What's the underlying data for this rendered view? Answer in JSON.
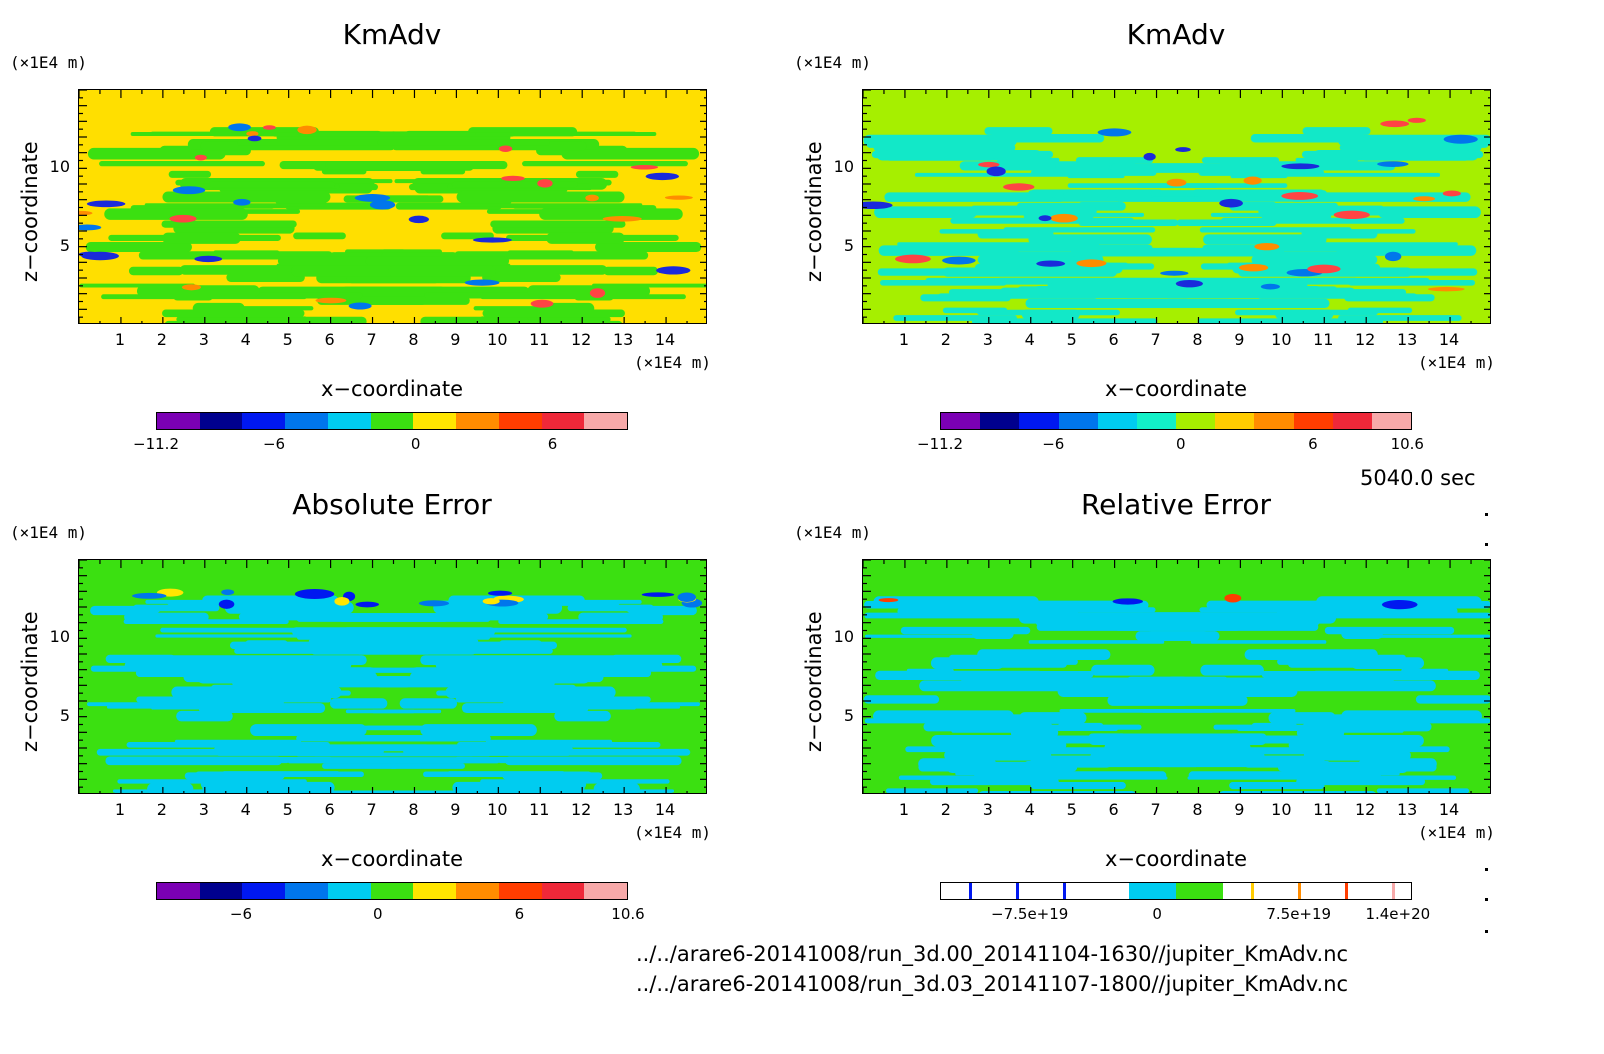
{
  "colors": {
    "main_positive_blobs": "#f44",
    "main_negative_blobs": "#1a2adb"
  },
  "panels": [
    {
      "title": "KmAdv",
      "y_unit": "(×1E4 m)",
      "x_unit": "(×1E4 m)",
      "ylabel": "z−coordinate",
      "xlabel": "x−coordinate",
      "xticks": [
        "1",
        "2",
        "3",
        "4",
        "5",
        "6",
        "7",
        "8",
        "9",
        "10",
        "11",
        "12",
        "13",
        "14"
      ],
      "yticks": [
        "5",
        "10"
      ],
      "background": "#ffdf00",
      "secondary": "#3be011",
      "colorbar": {
        "colors": [
          "#7b00b4",
          "#00008e",
          "#0018f0",
          "#0076ec",
          "#00ccf0",
          "#3be011",
          "#ffe600",
          "#ff8c00",
          "#ff3d00",
          "#ef2839",
          "#f7a9a9"
        ],
        "labels": [
          "−11.2",
          "−6",
          "0",
          "6"
        ]
      }
    },
    {
      "title": "KmAdv",
      "y_unit": "(×1E4 m)",
      "x_unit": "(×1E4 m)",
      "ylabel": "z−coordinate",
      "xlabel": "x−coordinate",
      "xticks": [
        "1",
        "2",
        "3",
        "4",
        "5",
        "6",
        "7",
        "8",
        "9",
        "10",
        "11",
        "12",
        "13",
        "14"
      ],
      "yticks": [
        "5",
        "10"
      ],
      "background": "#a6ef00",
      "secondary": "#12e8c8",
      "colorbar": {
        "colors": [
          "#7b00b4",
          "#00008e",
          "#0018f0",
          "#0076ec",
          "#00ccf0",
          "#12f0c8",
          "#a6ef00",
          "#ffcc00",
          "#ff8c00",
          "#ff3d00",
          "#ef2839",
          "#f7a9a9"
        ],
        "labels": [
          "−11.2",
          "−6",
          "0",
          "6",
          "10.6"
        ]
      }
    },
    {
      "title": "Absolute Error",
      "y_unit": "(×1E4 m)",
      "x_unit": "(×1E4 m)",
      "ylabel": "z−coordinate",
      "xlabel": "x−coordinate",
      "xticks": [
        "1",
        "2",
        "3",
        "4",
        "5",
        "6",
        "7",
        "8",
        "9",
        "10",
        "11",
        "12",
        "13",
        "14"
      ],
      "yticks": [
        "5",
        "10"
      ],
      "background": "#3be011",
      "secondary": "#00ccf0",
      "colorbar": {
        "colors": [
          "#7b00b4",
          "#00008e",
          "#0018f0",
          "#0076ec",
          "#00ccf0",
          "#3be011",
          "#ffe600",
          "#ff8c00",
          "#ff3d00",
          "#ef2839",
          "#f7a9a9"
        ],
        "labels": [
          "−6",
          "0",
          "6",
          "10.6"
        ]
      }
    },
    {
      "title": "Relative Error",
      "y_unit": "(×1E4 m)",
      "x_unit": "(×1E4 m)",
      "ylabel": "z−coordinate",
      "xlabel": "x−coordinate",
      "xticks": [
        "1",
        "2",
        "3",
        "4",
        "5",
        "6",
        "7",
        "8",
        "9",
        "10",
        "11",
        "12",
        "13",
        "14"
      ],
      "yticks": [
        "5",
        "10"
      ],
      "background": "#3be011",
      "secondary": "#00ccf0",
      "colorbar": {
        "colors": [
          "#ffffff",
          "#ffffff",
          "#ffffff",
          "#ffffff",
          "#00ccf0",
          "#3be011",
          "#ffffff",
          "#ffffff",
          "#ffffff",
          "#ffffff"
        ],
        "labels": [
          "−7.5e+19",
          "0",
          "7.5e+19",
          "1.4e+20"
        ]
      }
    }
  ],
  "time_label": "5040.0 sec",
  "file_paths": [
    "../../arare6-20141008/run_3d.00_20141104-1630//jupiter_KmAdv.nc",
    "../../arare6-20141008/run_3d.03_20141107-1800//jupiter_KmAdv.nc"
  ],
  "chart_data": [
    {
      "type": "heatmap",
      "title": "KmAdv",
      "xlabel": "x−coordinate",
      "ylabel": "z−coordinate",
      "xlim": [
        0,
        15
      ],
      "ylim": [
        0,
        15
      ],
      "x_unit": "(×1E4 m)",
      "y_unit": "(×1E4 m)",
      "colorbar_range": [
        -11.2,
        10.6
      ],
      "colorbar_ticks": [
        -11.2,
        -6,
        0,
        6
      ]
    },
    {
      "type": "heatmap",
      "title": "KmAdv",
      "xlabel": "x−coordinate",
      "ylabel": "z−coordinate",
      "xlim": [
        0,
        15
      ],
      "ylim": [
        0,
        15
      ],
      "x_unit": "(×1E4 m)",
      "y_unit": "(×1E4 m)",
      "colorbar_range": [
        -11.2,
        10.6
      ],
      "colorbar_ticks": [
        -11.2,
        -6,
        0,
        6,
        10.6
      ]
    },
    {
      "type": "heatmap",
      "title": "Absolute Error",
      "xlabel": "x−coordinate",
      "ylabel": "z−coordinate",
      "xlim": [
        0,
        15
      ],
      "ylim": [
        0,
        15
      ],
      "x_unit": "(×1E4 m)",
      "y_unit": "(×1E4 m)",
      "colorbar_ticks": [
        -6,
        0,
        6,
        10.6
      ]
    },
    {
      "type": "heatmap",
      "title": "Relative Error",
      "xlabel": "x−coordinate",
      "ylabel": "z−coordinate",
      "xlim": [
        0,
        15
      ],
      "ylim": [
        0,
        15
      ],
      "x_unit": "(×1E4 m)",
      "y_unit": "(×1E4 m)",
      "colorbar_ticks": [
        -7.5e+19,
        0,
        7.5e+19,
        1.4e+20
      ]
    }
  ]
}
